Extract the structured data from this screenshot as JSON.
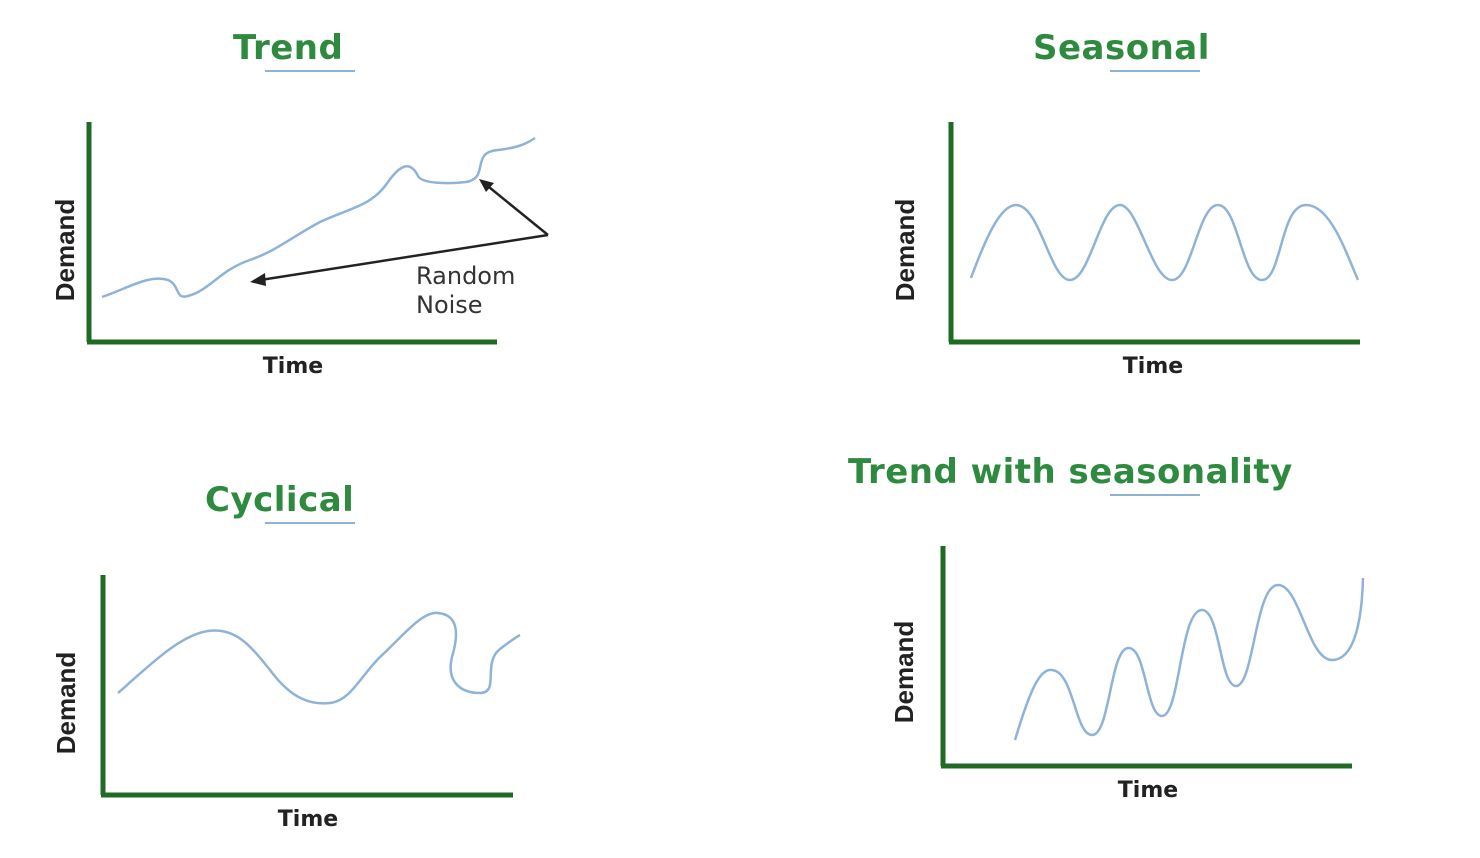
{
  "colors": {
    "title": "#2e8a3e",
    "underline": "#8fb3d6",
    "axis": "#1f6b24",
    "curve": "#8fb3d6",
    "arrow": "#222222",
    "text": "#222222"
  },
  "chart_data": [
    {
      "type": "line",
      "title": "Trend",
      "xlabel": "Time",
      "ylabel": "Demand",
      "annotation": {
        "text_line1": "Random",
        "text_line2": "Noise",
        "arrow_count": 2
      },
      "shape": "upward trend with random noise",
      "grid": false,
      "series": [
        {
          "x": [
            0,
            0.06,
            0.13,
            0.17,
            0.22,
            0.28,
            0.35,
            0.42,
            0.5,
            0.57,
            0.66,
            0.72,
            0.76,
            0.82,
            0.86,
            0.92,
            1.0
          ],
          "y": [
            0.05,
            0.12,
            0.15,
            0.05,
            0.18,
            0.28,
            0.36,
            0.5,
            0.55,
            0.68,
            0.82,
            0.7,
            0.7,
            0.72,
            0.88,
            0.92,
            1.0
          ]
        }
      ]
    },
    {
      "type": "line",
      "title": "Seasonal",
      "xlabel": "Time",
      "ylabel": "Demand",
      "shape": "repeating sine wave, 4 peaks",
      "grid": false,
      "series": [
        {
          "x": [
            0,
            0.11,
            0.24,
            0.37,
            0.5,
            0.62,
            0.74,
            0.87,
            1.0
          ],
          "y": [
            0.4,
            1.0,
            0.3,
            1.0,
            0.3,
            1.0,
            0.3,
            1.0,
            0.4
          ]
        }
      ]
    },
    {
      "type": "line",
      "title": "Cyclical",
      "xlabel": "Time",
      "ylabel": "Demand",
      "shape": "long irregular cycles",
      "grid": false,
      "series": [
        {
          "x": [
            0,
            0.22,
            0.48,
            0.68,
            0.82,
            0.86,
            0.92,
            1.0
          ],
          "y": [
            0.55,
            0.95,
            0.3,
            0.65,
            1.0,
            0.55,
            0.55,
            0.8
          ]
        }
      ]
    },
    {
      "type": "line",
      "title": "Trend with seasonality",
      "xlabel": "Time",
      "ylabel": "Demand",
      "shape": "sine wave with rising trend",
      "grid": false,
      "series": [
        {
          "x": [
            0,
            0.14,
            0.25,
            0.37,
            0.48,
            0.62,
            0.72,
            0.84,
            1.0
          ],
          "y": [
            0.05,
            0.45,
            0.1,
            0.6,
            0.2,
            0.75,
            0.35,
            0.9,
            1.0
          ]
        }
      ]
    }
  ]
}
